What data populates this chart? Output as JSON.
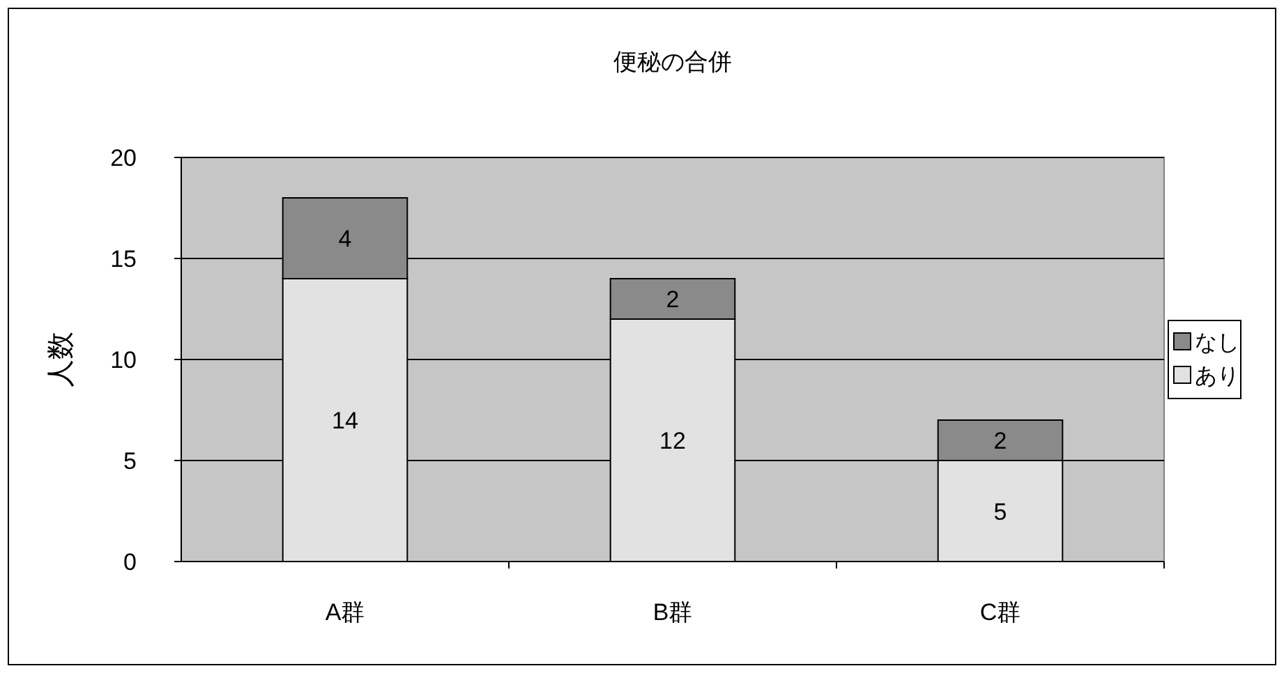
{
  "chart_data": {
    "type": "bar",
    "title": "便秘の合併",
    "ylabel": "人数",
    "categories": [
      "A群",
      "B群",
      "C群"
    ],
    "series": [
      {
        "name": "あり",
        "color": "#e2e2e2",
        "values": [
          14,
          12,
          5
        ]
      },
      {
        "name": "なし",
        "color": "#8a8a8a",
        "values": [
          4,
          2,
          2
        ]
      }
    ],
    "stacked": true,
    "ylim": [
      0,
      20
    ],
    "yticks": [
      0,
      5,
      10,
      15,
      20
    ],
    "grid": "y",
    "legend": "right",
    "data_labels": true
  }
}
